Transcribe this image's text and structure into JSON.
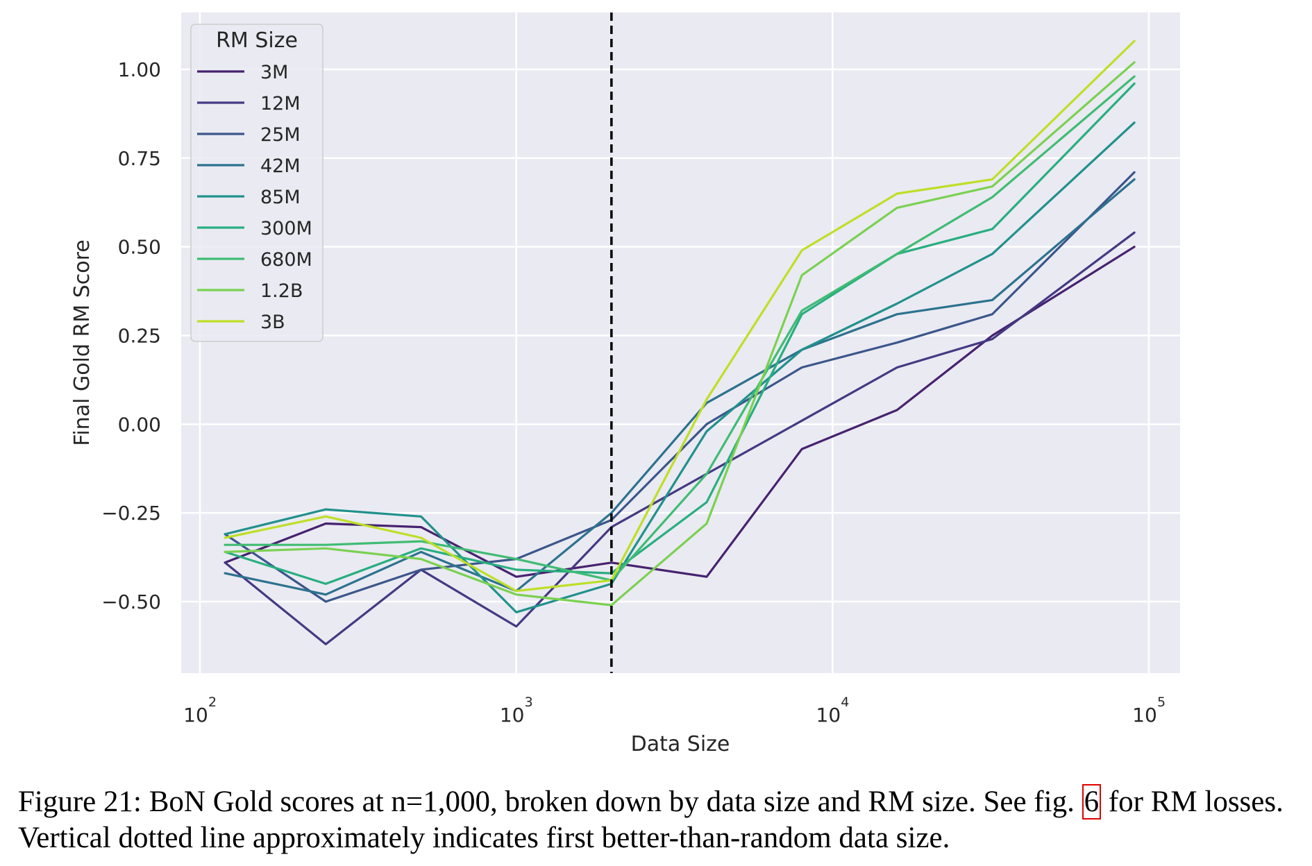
{
  "chart_data": {
    "type": "line",
    "title": "",
    "xlabel": "Data Size",
    "ylabel": "Final Gold RM Score",
    "xscale": "log",
    "xlim": [
      85,
      115000
    ],
    "ylim": [
      -0.7,
      1.16
    ],
    "grid": true,
    "x_ticks": [
      {
        "value": 100,
        "base": "10",
        "exp": "2"
      },
      {
        "value": 1000,
        "base": "10",
        "exp": "3"
      },
      {
        "value": 10000,
        "base": "10",
        "exp": "4"
      },
      {
        "value": 100000,
        "base": "10",
        "exp": "5"
      }
    ],
    "y_ticks": [
      {
        "value": 1.0,
        "label": "1.00"
      },
      {
        "value": 0.75,
        "label": "0.75"
      },
      {
        "value": 0.5,
        "label": "0.50"
      },
      {
        "value": 0.25,
        "label": "0.25"
      },
      {
        "value": 0.0,
        "label": "0.00"
      },
      {
        "value": -0.25,
        "label": "−0.25"
      },
      {
        "value": -0.5,
        "label": "−0.50"
      }
    ],
    "vline": {
      "x": 2000,
      "style": "dashed",
      "color": "#000000"
    },
    "legend": {
      "title": "RM Size",
      "position": "top-left"
    },
    "x": [
      120,
      250,
      500,
      1000,
      2000,
      4000,
      8000,
      16000,
      32000,
      90000
    ],
    "series": [
      {
        "name": "3M",
        "color": "#46226f",
        "values": [
          -0.39,
          -0.28,
          -0.29,
          -0.43,
          -0.39,
          -0.43,
          -0.07,
          0.04,
          0.25,
          0.5
        ]
      },
      {
        "name": "12M",
        "color": "#443983",
        "values": [
          -0.39,
          -0.62,
          -0.41,
          -0.57,
          -0.29,
          -0.14,
          0.01,
          0.16,
          0.24,
          0.54
        ]
      },
      {
        "name": "25M",
        "color": "#3b568b",
        "values": [
          -0.31,
          -0.5,
          -0.41,
          -0.38,
          -0.27,
          0.0,
          0.16,
          0.23,
          0.31,
          0.71
        ]
      },
      {
        "name": "42M",
        "color": "#2c728e",
        "values": [
          -0.42,
          -0.48,
          -0.36,
          -0.47,
          -0.25,
          0.06,
          0.21,
          0.31,
          0.35,
          0.69
        ]
      },
      {
        "name": "85M",
        "color": "#21918c",
        "values": [
          -0.31,
          -0.24,
          -0.26,
          -0.53,
          -0.45,
          -0.02,
          0.21,
          0.34,
          0.48,
          0.85
        ]
      },
      {
        "name": "300M",
        "color": "#28ae80",
        "values": [
          -0.36,
          -0.45,
          -0.35,
          -0.41,
          -0.42,
          -0.22,
          0.31,
          0.48,
          0.55,
          0.96
        ]
      },
      {
        "name": "680M",
        "color": "#3fbc73",
        "values": [
          -0.34,
          -0.34,
          -0.33,
          -0.38,
          -0.44,
          -0.14,
          0.32,
          0.48,
          0.64,
          0.98
        ]
      },
      {
        "name": "1.2B",
        "color": "#7ad151",
        "values": [
          -0.36,
          -0.35,
          -0.38,
          -0.48,
          -0.51,
          -0.28,
          0.42,
          0.61,
          0.67,
          1.02
        ]
      },
      {
        "name": "3B",
        "color": "#bddf26",
        "values": [
          -0.32,
          -0.26,
          -0.32,
          -0.47,
          -0.44,
          0.07,
          0.49,
          0.65,
          0.69,
          1.08
        ]
      }
    ]
  },
  "caption": {
    "part1": "Figure 21: BoN Gold scores at n=1,000, broken down by data size and RM size. See fig. ",
    "ref": "6",
    "part2": " for RM losses. Vertical dotted line approximately indicates first better-than-random data size."
  }
}
